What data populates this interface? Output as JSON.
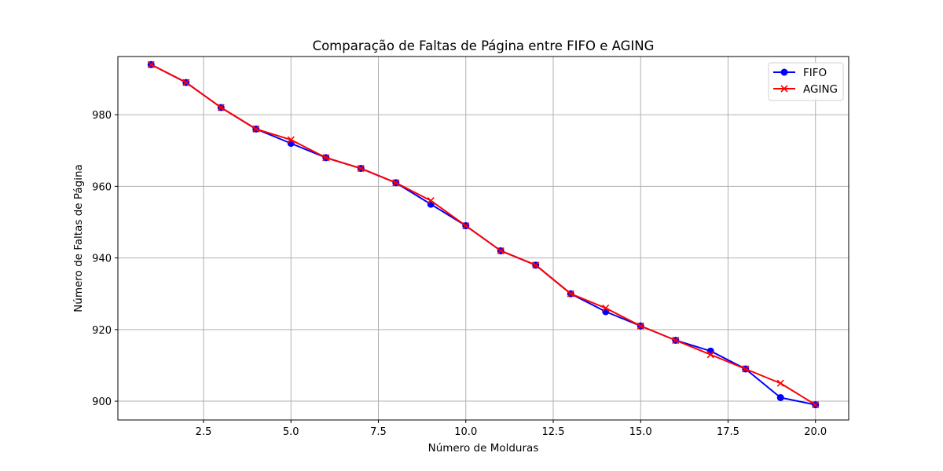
{
  "chart_data": {
    "type": "line",
    "title": "Comparação de Faltas de Página entre FIFO e AGING",
    "xlabel": "Número de Molduras",
    "ylabel": "Número de Faltas de Página",
    "xlim": [
      0.05,
      20.95
    ],
    "ylim": [
      894.75,
      996.25
    ],
    "xticks": [
      2.5,
      5.0,
      7.5,
      10.0,
      12.5,
      15.0,
      17.5,
      20.0
    ],
    "xtick_labels": [
      "2.5",
      "5.0",
      "7.5",
      "10.0",
      "12.5",
      "15.0",
      "17.5",
      "20.0"
    ],
    "yticks": [
      900,
      920,
      940,
      960,
      980
    ],
    "ytick_labels": [
      "900",
      "920",
      "940",
      "960",
      "980"
    ],
    "grid": true,
    "legend_position": "top-right",
    "x": [
      1,
      2,
      3,
      4,
      5,
      6,
      7,
      8,
      9,
      10,
      11,
      12,
      13,
      14,
      15,
      16,
      17,
      18,
      19,
      20
    ],
    "series": [
      {
        "name": "FIFO",
        "color": "#0000ff",
        "marker": "circle",
        "values": [
          994,
          989,
          982,
          976,
          972,
          968,
          965,
          961,
          955,
          949,
          942,
          938,
          930,
          925,
          921,
          917,
          914,
          909,
          901,
          899
        ]
      },
      {
        "name": "AGING",
        "color": "#ff0000",
        "marker": "x",
        "values": [
          994,
          989,
          982,
          976,
          973,
          968,
          965,
          961,
          956,
          949,
          942,
          938,
          930,
          926,
          921,
          917,
          913,
          909,
          905,
          899
        ]
      }
    ]
  }
}
